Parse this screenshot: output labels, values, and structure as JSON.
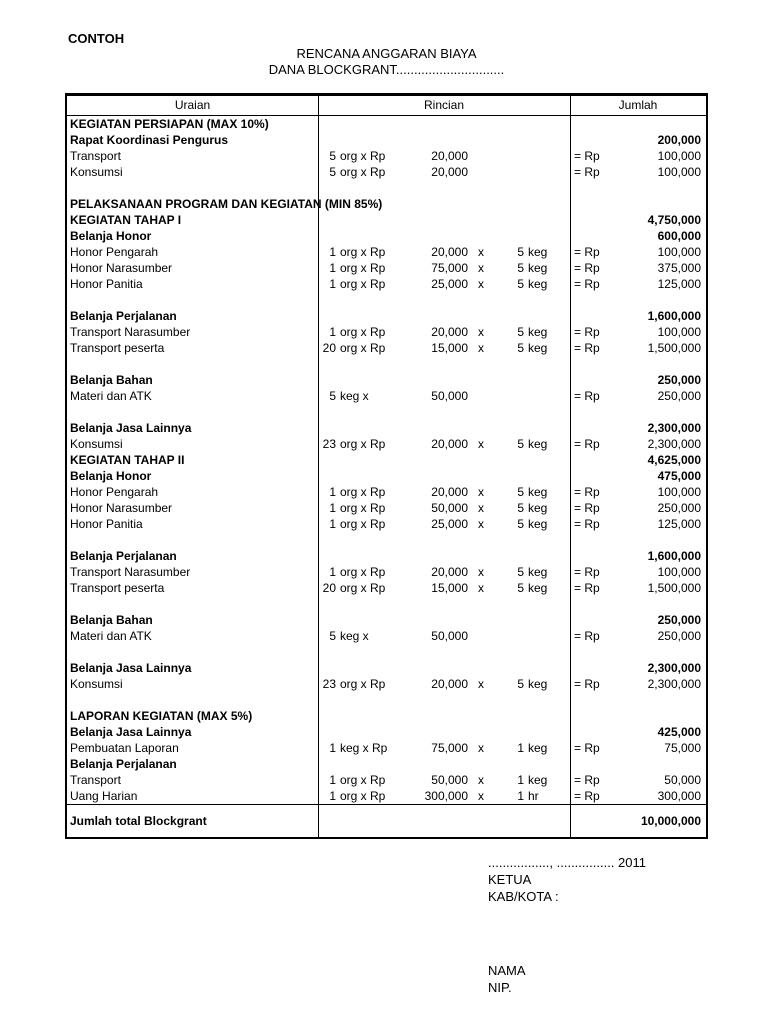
{
  "page": {
    "watermark": "CONTOH",
    "title1": "RENCANA ANGGARAN BIAYA",
    "title2": "DANA BLOCKGRANT.............................."
  },
  "table": {
    "headers": [
      "Uraian",
      "Rincian",
      "Jumlah"
    ],
    "rows": [
      {
        "type": "section",
        "label": "KEGIATAN PERSIAPAN (MAX 10%)",
        "amount": ""
      },
      {
        "type": "section",
        "label": "Rapat Koordinasi Pengurus",
        "amount": "200,000"
      },
      {
        "type": "item",
        "label": "Transport",
        "q1": "5",
        "u1": "org x Rp",
        "a1": "20,000",
        "x": "",
        "q2": "",
        "u2": "",
        "eq": "= Rp",
        "amount": "100,000"
      },
      {
        "type": "item",
        "label": "Konsumsi",
        "q1": "5",
        "u1": "org x Rp",
        "a1": "20,000",
        "x": "",
        "q2": "",
        "u2": "",
        "eq": "= Rp",
        "amount": "100,000"
      },
      {
        "type": "blank"
      },
      {
        "type": "overflow",
        "label": "PELAKSANAAN PROGRAM DAN KEGIATAN (MIN 85%)"
      },
      {
        "type": "section",
        "label": "KEGIATAN TAHAP I",
        "amount": "4,750,000"
      },
      {
        "type": "section",
        "label": "Belanja Honor",
        "amount": "600,000"
      },
      {
        "type": "item",
        "label": "Honor Pengarah",
        "q1": "1",
        "u1": "org x Rp",
        "a1": "20,000",
        "x": "x",
        "q2": "5",
        "u2": "keg",
        "eq": "= Rp",
        "amount": "100,000"
      },
      {
        "type": "item",
        "label": "Honor Narasumber",
        "q1": "1",
        "u1": "org x Rp",
        "a1": "75,000",
        "x": "x",
        "q2": "5",
        "u2": "keg",
        "eq": "= Rp",
        "amount": "375,000"
      },
      {
        "type": "item",
        "label": "Honor Panitia",
        "q1": "1",
        "u1": "org x Rp",
        "a1": "25,000",
        "x": "x",
        "q2": "5",
        "u2": "keg",
        "eq": "= Rp",
        "amount": "125,000"
      },
      {
        "type": "blank"
      },
      {
        "type": "section",
        "label": "Belanja Perjalanan",
        "amount": "1,600,000"
      },
      {
        "type": "item",
        "label": "Transport Narasumber",
        "q1": "1",
        "u1": "org x Rp",
        "a1": "20,000",
        "x": "x",
        "q2": "5",
        "u2": "keg",
        "eq": "= Rp",
        "amount": "100,000"
      },
      {
        "type": "item",
        "label": "Transport peserta",
        "q1": "20",
        "u1": "org x Rp",
        "a1": "15,000",
        "x": "x",
        "q2": "5",
        "u2": "keg",
        "eq": "= Rp",
        "amount": "1,500,000"
      },
      {
        "type": "blank"
      },
      {
        "type": "section",
        "label": "Belanja Bahan",
        "amount": "250,000"
      },
      {
        "type": "item",
        "label": "Materi dan ATK",
        "q1": "5",
        "u1": "keg x",
        "a1": "50,000",
        "x": "",
        "q2": "",
        "u2": "",
        "eq": "= Rp",
        "amount": "250,000"
      },
      {
        "type": "blank"
      },
      {
        "type": "section",
        "label": "Belanja Jasa Lainnya",
        "amount": "2,300,000"
      },
      {
        "type": "item",
        "label": "Konsumsi",
        "q1": "23",
        "u1": "org x Rp",
        "a1": "20,000",
        "x": "x",
        "q2": "5",
        "u2": "keg",
        "eq": "= Rp",
        "amount": "2,300,000"
      },
      {
        "type": "section",
        "label": "KEGIATAN TAHAP II",
        "amount": "4,625,000"
      },
      {
        "type": "section",
        "label": "Belanja Honor",
        "amount": "475,000"
      },
      {
        "type": "item",
        "label": "Honor Pengarah",
        "q1": "1",
        "u1": "org x Rp",
        "a1": "20,000",
        "x": "x",
        "q2": "5",
        "u2": "keg",
        "eq": "= Rp",
        "amount": "100,000"
      },
      {
        "type": "item",
        "label": "Honor Narasumber",
        "q1": "1",
        "u1": "org x Rp",
        "a1": "50,000",
        "x": "x",
        "q2": "5",
        "u2": "keg",
        "eq": "= Rp",
        "amount": "250,000"
      },
      {
        "type": "item",
        "label": "Honor Panitia",
        "q1": "1",
        "u1": "org x Rp",
        "a1": "25,000",
        "x": "x",
        "q2": "5",
        "u2": "keg",
        "eq": "= Rp",
        "amount": "125,000"
      },
      {
        "type": "blank"
      },
      {
        "type": "section",
        "label": "Belanja Perjalanan",
        "amount": "1,600,000"
      },
      {
        "type": "item",
        "label": "Transport Narasumber",
        "q1": "1",
        "u1": "org x Rp",
        "a1": "20,000",
        "x": "x",
        "q2": "5",
        "u2": "keg",
        "eq": "= Rp",
        "amount": "100,000"
      },
      {
        "type": "item",
        "label": "Transport peserta",
        "q1": "20",
        "u1": "org x Rp",
        "a1": "15,000",
        "x": "x",
        "q2": "5",
        "u2": "keg",
        "eq": "= Rp",
        "amount": "1,500,000"
      },
      {
        "type": "blank"
      },
      {
        "type": "section",
        "label": "Belanja Bahan",
        "amount": "250,000"
      },
      {
        "type": "item",
        "label": "Materi dan ATK",
        "q1": "5",
        "u1": "keg x",
        "a1": "50,000",
        "x": "",
        "q2": "",
        "u2": "",
        "eq": "= Rp",
        "amount": "250,000"
      },
      {
        "type": "blank"
      },
      {
        "type": "section",
        "label": "Belanja Jasa Lainnya",
        "amount": "2,300,000"
      },
      {
        "type": "item",
        "label": "Konsumsi",
        "q1": "23",
        "u1": "org x Rp",
        "a1": "20,000",
        "x": "x",
        "q2": "5",
        "u2": "keg",
        "eq": "= Rp",
        "amount": "2,300,000"
      },
      {
        "type": "blank"
      },
      {
        "type": "section",
        "label": "LAPORAN KEGIATAN (MAX 5%)",
        "amount": ""
      },
      {
        "type": "section",
        "label": "Belanja Jasa Lainnya",
        "amount": "425,000"
      },
      {
        "type": "item",
        "label": "Pembuatan Laporan",
        "q1": "1",
        "u1": "keg x Rp",
        "a1": "75,000",
        "x": "x",
        "q2": "1",
        "u2": "keg",
        "eq": "= Rp",
        "amount": "75,000"
      },
      {
        "type": "section",
        "label": "Belanja Perjalanan",
        "amount": ""
      },
      {
        "type": "item",
        "label": "Transport",
        "q1": "1",
        "u1": "org x Rp",
        "a1": "50,000",
        "x": "x",
        "q2": "1",
        "u2": "keg",
        "eq": "= Rp",
        "amount": "50,000"
      },
      {
        "type": "item",
        "label": "Uang Harian",
        "q1": "1",
        "u1": "org x Rp",
        "a1": "300,000",
        "x": "x",
        "q2": "1",
        "u2": "hr",
        "eq": "= Rp",
        "amount": "300,000"
      }
    ],
    "total": {
      "label": "Jumlah total Blockgrant",
      "amount": "10,000,000"
    }
  },
  "footer": {
    "date_line": "................., ................ 2011",
    "line1": "KETUA",
    "line2": "KAB/KOTA :",
    "line3": "NAMA",
    "line4": "NIP."
  }
}
